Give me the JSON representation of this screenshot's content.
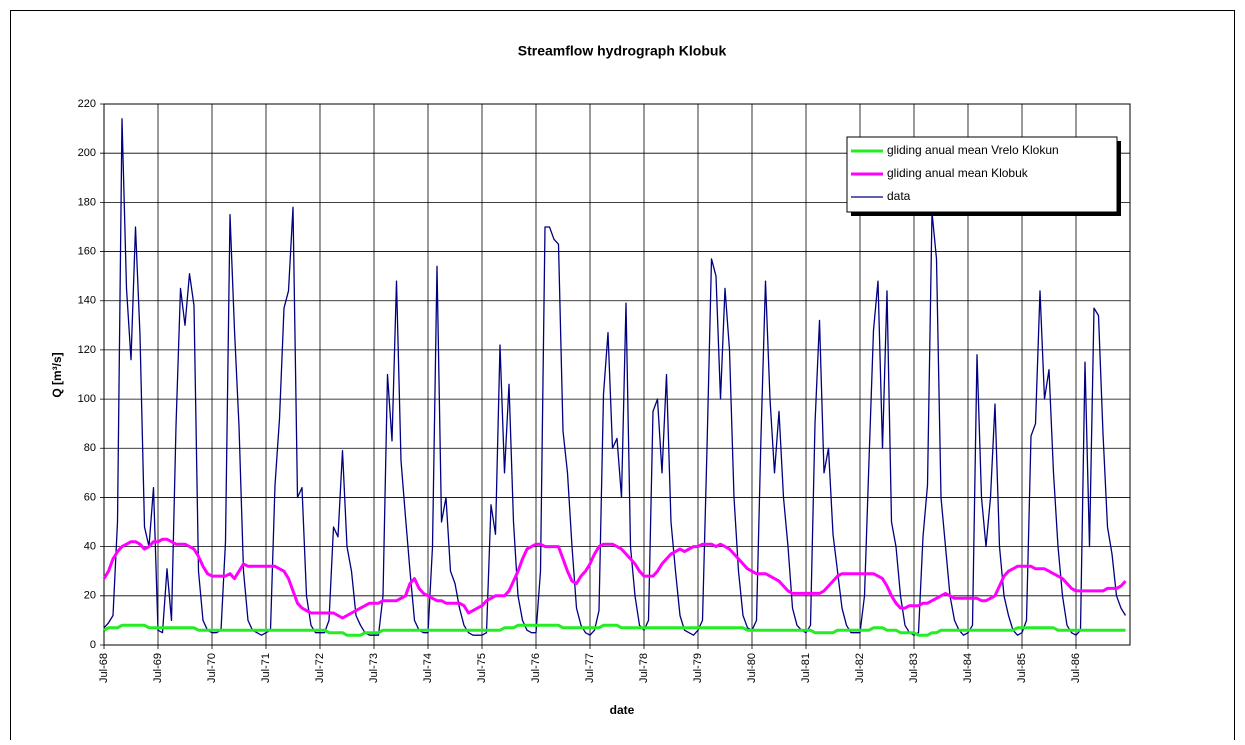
{
  "chart_data": {
    "type": "line",
    "title": "Streamflow hydrograph Klobuk",
    "x_label": "date",
    "y_label": "Q [m³/s]",
    "x": [
      "Jul-68",
      "Aug-68",
      "Sep-68",
      "Oct-68",
      "Nov-68",
      "Dec-68",
      "Jan-69",
      "Feb-69",
      "Mar-69",
      "Apr-69",
      "May-69",
      "Jun-69",
      "Jul-69",
      "Aug-69",
      "Sep-69",
      "Oct-69",
      "Nov-69",
      "Dec-69",
      "Jan-70",
      "Feb-70",
      "Mar-70",
      "Apr-70",
      "May-70",
      "Jun-70",
      "Jul-70",
      "Aug-70",
      "Sep-70",
      "Oct-70",
      "Nov-70",
      "Dec-70",
      "Jan-71",
      "Feb-71",
      "Mar-71",
      "Apr-71",
      "May-71",
      "Jun-71",
      "Jul-71",
      "Aug-71",
      "Sep-71",
      "Oct-71",
      "Nov-71",
      "Dec-71",
      "Jan-72",
      "Feb-72",
      "Mar-72",
      "Apr-72",
      "May-72",
      "Jun-72",
      "Jul-72",
      "Aug-72",
      "Sep-72",
      "Oct-72",
      "Nov-72",
      "Dec-72",
      "Jan-73",
      "Feb-73",
      "Mar-73",
      "Apr-73",
      "May-73",
      "Jun-73",
      "Jul-73",
      "Aug-73",
      "Sep-73",
      "Oct-73",
      "Nov-73",
      "Dec-73",
      "Jan-74",
      "Feb-74",
      "Mar-74",
      "Apr-74",
      "May-74",
      "Jun-74",
      "Jul-74",
      "Aug-74",
      "Sep-74",
      "Oct-74",
      "Nov-74",
      "Dec-74",
      "Jan-75",
      "Feb-75",
      "Mar-75",
      "Apr-75",
      "May-75",
      "Jun-75",
      "Jul-75",
      "Aug-75",
      "Sep-75",
      "Oct-75",
      "Nov-75",
      "Dec-75",
      "Jan-76",
      "Feb-76",
      "Mar-76",
      "Apr-76",
      "May-76",
      "Jun-76",
      "Jul-76",
      "Aug-76",
      "Sep-76",
      "Oct-76",
      "Nov-76",
      "Dec-76",
      "Jan-77",
      "Feb-77",
      "Mar-77",
      "Apr-77",
      "May-77",
      "Jun-77",
      "Jul-77",
      "Aug-77",
      "Sep-77",
      "Oct-77",
      "Nov-77",
      "Dec-77",
      "Jan-78",
      "Feb-78",
      "Mar-78",
      "Apr-78",
      "May-78",
      "Jun-78",
      "Jul-78",
      "Aug-78",
      "Sep-78",
      "Oct-78",
      "Nov-78",
      "Dec-78",
      "Jan-79",
      "Feb-79",
      "Mar-79",
      "Apr-79",
      "May-79",
      "Jun-79",
      "Jul-79",
      "Aug-79",
      "Sep-79",
      "Oct-79",
      "Nov-79",
      "Dec-79",
      "Jan-80",
      "Feb-80",
      "Mar-80",
      "Apr-80",
      "May-80",
      "Jun-80",
      "Jul-80",
      "Aug-80",
      "Sep-80",
      "Oct-80",
      "Nov-80",
      "Dec-80",
      "Jan-81",
      "Feb-81",
      "Mar-81",
      "Apr-81",
      "May-81",
      "Jun-81",
      "Jul-81",
      "Aug-81",
      "Sep-81",
      "Oct-81",
      "Nov-81",
      "Dec-81",
      "Jan-82",
      "Feb-82",
      "Mar-82",
      "Apr-82",
      "May-82",
      "Jun-82",
      "Jul-82",
      "Aug-82",
      "Sep-82",
      "Oct-82",
      "Nov-82",
      "Dec-82",
      "Jan-83",
      "Feb-83",
      "Mar-83",
      "Apr-83",
      "May-83",
      "Jun-83",
      "Jul-83",
      "Aug-83",
      "Sep-83",
      "Oct-83",
      "Nov-83",
      "Dec-83",
      "Jan-84",
      "Feb-84",
      "Mar-84",
      "Apr-84",
      "May-84",
      "Jun-84",
      "Jul-84",
      "Aug-84",
      "Sep-84",
      "Oct-84",
      "Nov-84",
      "Dec-84",
      "Jan-85",
      "Feb-85",
      "Mar-85",
      "Apr-85",
      "May-85",
      "Jun-85",
      "Jul-85",
      "Aug-85",
      "Sep-85",
      "Oct-85",
      "Nov-85",
      "Dec-85",
      "Jan-86",
      "Feb-86",
      "Mar-86",
      "Apr-86",
      "May-86",
      "Jun-86",
      "Jul-86",
      "Aug-86",
      "Sep-86",
      "Oct-86",
      "Nov-86",
      "Dec-86",
      "Jan-87",
      "Feb-87",
      "Mar-87",
      "Apr-87",
      "May-87",
      "Jun-87"
    ],
    "series": [
      {
        "name": "gliding anual mean Vrelo Klokun",
        "color": "#22ee22",
        "width": 3,
        "values": [
          6,
          7,
          7,
          7,
          8,
          8,
          8,
          8,
          8,
          8,
          7,
          7,
          7,
          7,
          7,
          7,
          7,
          7,
          7,
          7,
          7,
          6,
          6,
          6,
          6,
          6,
          6,
          6,
          6,
          6,
          6,
          6,
          6,
          6,
          6,
          6,
          6,
          6,
          6,
          6,
          6,
          6,
          6,
          6,
          6,
          6,
          6,
          6,
          6,
          6,
          5,
          5,
          5,
          5,
          4,
          4,
          4,
          4,
          5,
          5,
          5,
          5,
          6,
          6,
          6,
          6,
          6,
          6,
          6,
          6,
          6,
          6,
          6,
          6,
          6,
          6,
          6,
          6,
          6,
          6,
          6,
          6,
          6,
          6,
          6,
          6,
          6,
          6,
          6,
          7,
          7,
          7,
          8,
          8,
          8,
          8,
          8,
          8,
          8,
          8,
          8,
          8,
          7,
          7,
          7,
          7,
          7,
          7,
          7,
          7,
          7,
          8,
          8,
          8,
          8,
          7,
          7,
          7,
          7,
          7,
          7,
          7,
          7,
          7,
          7,
          7,
          7,
          7,
          7,
          7,
          7,
          7,
          7,
          7,
          7,
          7,
          7,
          7,
          7,
          7,
          7,
          7,
          7,
          6,
          6,
          6,
          6,
          6,
          6,
          6,
          6,
          6,
          6,
          6,
          6,
          6,
          6,
          6,
          5,
          5,
          5,
          5,
          5,
          6,
          6,
          6,
          6,
          6,
          6,
          6,
          6,
          7,
          7,
          7,
          6,
          6,
          6,
          5,
          5,
          5,
          5,
          4,
          4,
          4,
          5,
          5,
          6,
          6,
          6,
          6,
          6,
          6,
          6,
          6,
          6,
          6,
          6,
          6,
          6,
          6,
          6,
          6,
          6,
          7,
          7,
          7,
          7,
          7,
          7,
          7,
          7,
          7,
          6,
          6,
          6,
          6,
          6,
          6,
          6,
          6,
          6,
          6,
          6,
          6,
          6,
          6,
          6,
          6
        ]
      },
      {
        "name": "gliding anual mean Klobuk",
        "color": "#ff00ff",
        "width": 3,
        "values": [
          27,
          30,
          35,
          38,
          40,
          41,
          42,
          42,
          41,
          39,
          40,
          42,
          42,
          43,
          43,
          42,
          41,
          41,
          41,
          40,
          39,
          36,
          32,
          29,
          28,
          28,
          28,
          28,
          29,
          27,
          30,
          33,
          32,
          32,
          32,
          32,
          32,
          32,
          32,
          31,
          30,
          27,
          22,
          17,
          15,
          14,
          13,
          13,
          13,
          13,
          13,
          13,
          12,
          11,
          12,
          13,
          14,
          15,
          16,
          17,
          17,
          17,
          18,
          18,
          18,
          18,
          19,
          20,
          25,
          27,
          23,
          21,
          20,
          19,
          18,
          18,
          17,
          17,
          17,
          17,
          16,
          13,
          14,
          15,
          16,
          18,
          19,
          20,
          20,
          20,
          22,
          26,
          30,
          35,
          39,
          40,
          41,
          41,
          40,
          40,
          40,
          40,
          35,
          30,
          26,
          25,
          28,
          30,
          33,
          37,
          40,
          41,
          41,
          41,
          40,
          39,
          37,
          35,
          33,
          30,
          28,
          28,
          28,
          30,
          33,
          35,
          37,
          38,
          39,
          38,
          39,
          40,
          40,
          41,
          41,
          41,
          40,
          41,
          40,
          39,
          37,
          35,
          33,
          31,
          30,
          29,
          29,
          29,
          28,
          27,
          26,
          24,
          22,
          21,
          21,
          21,
          21,
          21,
          21,
          21,
          22,
          24,
          26,
          28,
          29,
          29,
          29,
          29,
          29,
          29,
          29,
          29,
          28,
          27,
          24,
          20,
          17,
          15,
          15,
          16,
          16,
          16,
          17,
          17,
          18,
          19,
          20,
          21,
          20,
          19,
          19,
          19,
          19,
          19,
          19,
          18,
          18,
          19,
          20,
          24,
          28,
          30,
          31,
          32,
          32,
          32,
          32,
          31,
          31,
          31,
          30,
          29,
          28,
          27,
          25,
          23,
          22,
          22,
          22,
          22,
          22,
          22,
          22,
          23,
          23,
          23,
          24,
          26
        ]
      },
      {
        "name": "data",
        "color": "#000080",
        "width": 1.3,
        "values": [
          7,
          9,
          12,
          50,
          214,
          145,
          116,
          170,
          126,
          48,
          40,
          64,
          6,
          5,
          31,
          10,
          89,
          145,
          130,
          151,
          138,
          30,
          10,
          6,
          5,
          5,
          6,
          42,
          175,
          128,
          89,
          30,
          10,
          6,
          5,
          4,
          5,
          6,
          65,
          92,
          137,
          144,
          178,
          60,
          64,
          20,
          8,
          5,
          5,
          5,
          10,
          48,
          44,
          79,
          40,
          30,
          12,
          8,
          5,
          4,
          4,
          4,
          20,
          110,
          83,
          148,
          75,
          52,
          30,
          10,
          6,
          5,
          5,
          40,
          154,
          50,
          60,
          30,
          25,
          15,
          8,
          5,
          4,
          4,
          4,
          5,
          57,
          45,
          122,
          70,
          106,
          50,
          20,
          10,
          6,
          5,
          5,
          30,
          170,
          170,
          165,
          163,
          87,
          70,
          40,
          15,
          8,
          5,
          4,
          6,
          14,
          102,
          127,
          80,
          84,
          60,
          139,
          40,
          20,
          8,
          6,
          10,
          95,
          100,
          70,
          110,
          50,
          30,
          12,
          6,
          5,
          4,
          6,
          10,
          80,
          157,
          150,
          100,
          145,
          120,
          60,
          30,
          12,
          7,
          6,
          10,
          85,
          148,
          100,
          70,
          95,
          60,
          40,
          15,
          8,
          6,
          5,
          8,
          90,
          132,
          70,
          80,
          45,
          30,
          15,
          8,
          5,
          5,
          5,
          20,
          75,
          128,
          148,
          80,
          144,
          50,
          40,
          20,
          8,
          5,
          4,
          5,
          44,
          65,
          176,
          157,
          60,
          40,
          20,
          10,
          6,
          4,
          5,
          8,
          118,
          60,
          40,
          60,
          98,
          40,
          20,
          12,
          6,
          4,
          5,
          10,
          85,
          90,
          144,
          100,
          112,
          70,
          40,
          20,
          8,
          5,
          4,
          6,
          115,
          40,
          137,
          134,
          86,
          48,
          37,
          20,
          15,
          12
        ]
      }
    ],
    "xlim": [
      "Jul-68",
      "Jul-87"
    ],
    "xticks": [
      "Jul-68",
      "Jul-69",
      "Jul-70",
      "Jul-71",
      "Jul-72",
      "Jul-73",
      "Jul-74",
      "Jul-75",
      "Jul-76",
      "Jul-77",
      "Jul-78",
      "Jul-79",
      "Jul-80",
      "Jul-81",
      "Jul-82",
      "Jul-83",
      "Jul-84",
      "Jul-85",
      "Jul-86"
    ],
    "ylim": [
      0,
      220
    ],
    "yticks": [
      0,
      20,
      40,
      60,
      80,
      100,
      120,
      140,
      160,
      180,
      200,
      220
    ],
    "grid": true,
    "legend": "upper right"
  }
}
